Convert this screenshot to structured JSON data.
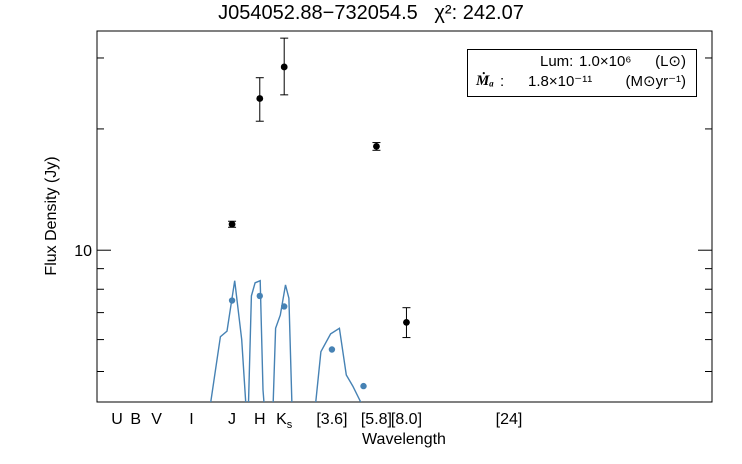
{
  "chart_data": {
    "type": "scatter",
    "title": "J054052.88−732054.5   χ²: 242.07",
    "xlabel": "Wavelength",
    "ylabel": "Flux Density (Jy)",
    "yscale": "log",
    "ylim": [
      4.2,
      35
    ],
    "y_tick_labels": [
      {
        "value": 10,
        "label": "10"
      }
    ],
    "x_band_labels": [
      {
        "band": "U",
        "wavelength": 0.36
      },
      {
        "band": "B",
        "wavelength": 0.44
      },
      {
        "band": "V",
        "wavelength": 0.55
      },
      {
        "band": "I",
        "wavelength": 0.8
      },
      {
        "band": "J",
        "wavelength": 1.235
      },
      {
        "band": "H",
        "wavelength": 1.662
      },
      {
        "band": "Ks",
        "wavelength": 2.159
      },
      {
        "band": "[3.6]",
        "wavelength": 3.6
      },
      {
        "band": "[5.8]",
        "wavelength": 5.8
      },
      {
        "band": "[8.0]",
        "wavelength": 8.0
      },
      {
        "band": "[24]",
        "wavelength": 24.0
      }
    ],
    "observed": [
      {
        "band": "J",
        "x": 1.235,
        "y": 11.6,
        "ylo": 11.4,
        "yhi": 11.8
      },
      {
        "band": "H",
        "x": 1.662,
        "y": 23.8,
        "ylo": 20.9,
        "yhi": 26.8
      },
      {
        "band": "Ks",
        "x": 2.159,
        "y": 28.5,
        "ylo": 24.3,
        "yhi": 33.6
      },
      {
        "band": "[5.8]",
        "x": 5.8,
        "y": 18.1,
        "ylo": 17.7,
        "yhi": 18.5
      },
      {
        "band": "[8.0]",
        "x": 8.0,
        "y": 6.62,
        "ylo": 6.07,
        "yhi": 7.2
      }
    ],
    "model_points": [
      {
        "x": 1.235,
        "y": 7.5
      },
      {
        "x": 1.662,
        "y": 7.7
      },
      {
        "x": 2.159,
        "y": 7.25
      },
      {
        "x": 3.6,
        "y": 5.67
      },
      {
        "x": 5.05,
        "y": 4.6
      }
    ],
    "model_curve": [
      [
        0.97,
        4.0
      ],
      [
        1.09,
        6.1
      ],
      [
        1.17,
        6.3
      ],
      [
        1.27,
        8.4
      ],
      [
        1.37,
        6.0
      ],
      [
        1.43,
        4.2
      ],
      [
        1.47,
        4.0
      ],
      [
        1.52,
        7.7
      ],
      [
        1.58,
        8.3
      ],
      [
        1.67,
        8.4
      ],
      [
        1.72,
        4.5
      ],
      [
        1.75,
        4.0
      ],
      [
        1.92,
        4.2
      ],
      [
        1.97,
        6.4
      ],
      [
        2.07,
        6.9
      ],
      [
        2.19,
        8.2
      ],
      [
        2.27,
        7.6
      ],
      [
        2.35,
        4.0
      ],
      [
        3.0,
        4.0
      ],
      [
        3.2,
        5.6
      ],
      [
        3.55,
        6.2
      ],
      [
        3.9,
        6.4
      ],
      [
        4.2,
        4.9
      ],
      [
        4.5,
        4.6
      ],
      [
        4.9,
        4.2
      ]
    ],
    "colors": {
      "observed": "#000000",
      "model": "#4682b4"
    },
    "legend": {
      "placement": "top-right",
      "rows": [
        {
          "name": "",
          "label": "Lum:",
          "value": "1.0×10⁶",
          "unit": "(L⊙)"
        },
        {
          "name": "Ṁₐ",
          "label": ":",
          "value": "1.8×10⁻¹¹",
          "unit": "(M⊙yr⁻¹)"
        }
      ]
    }
  }
}
